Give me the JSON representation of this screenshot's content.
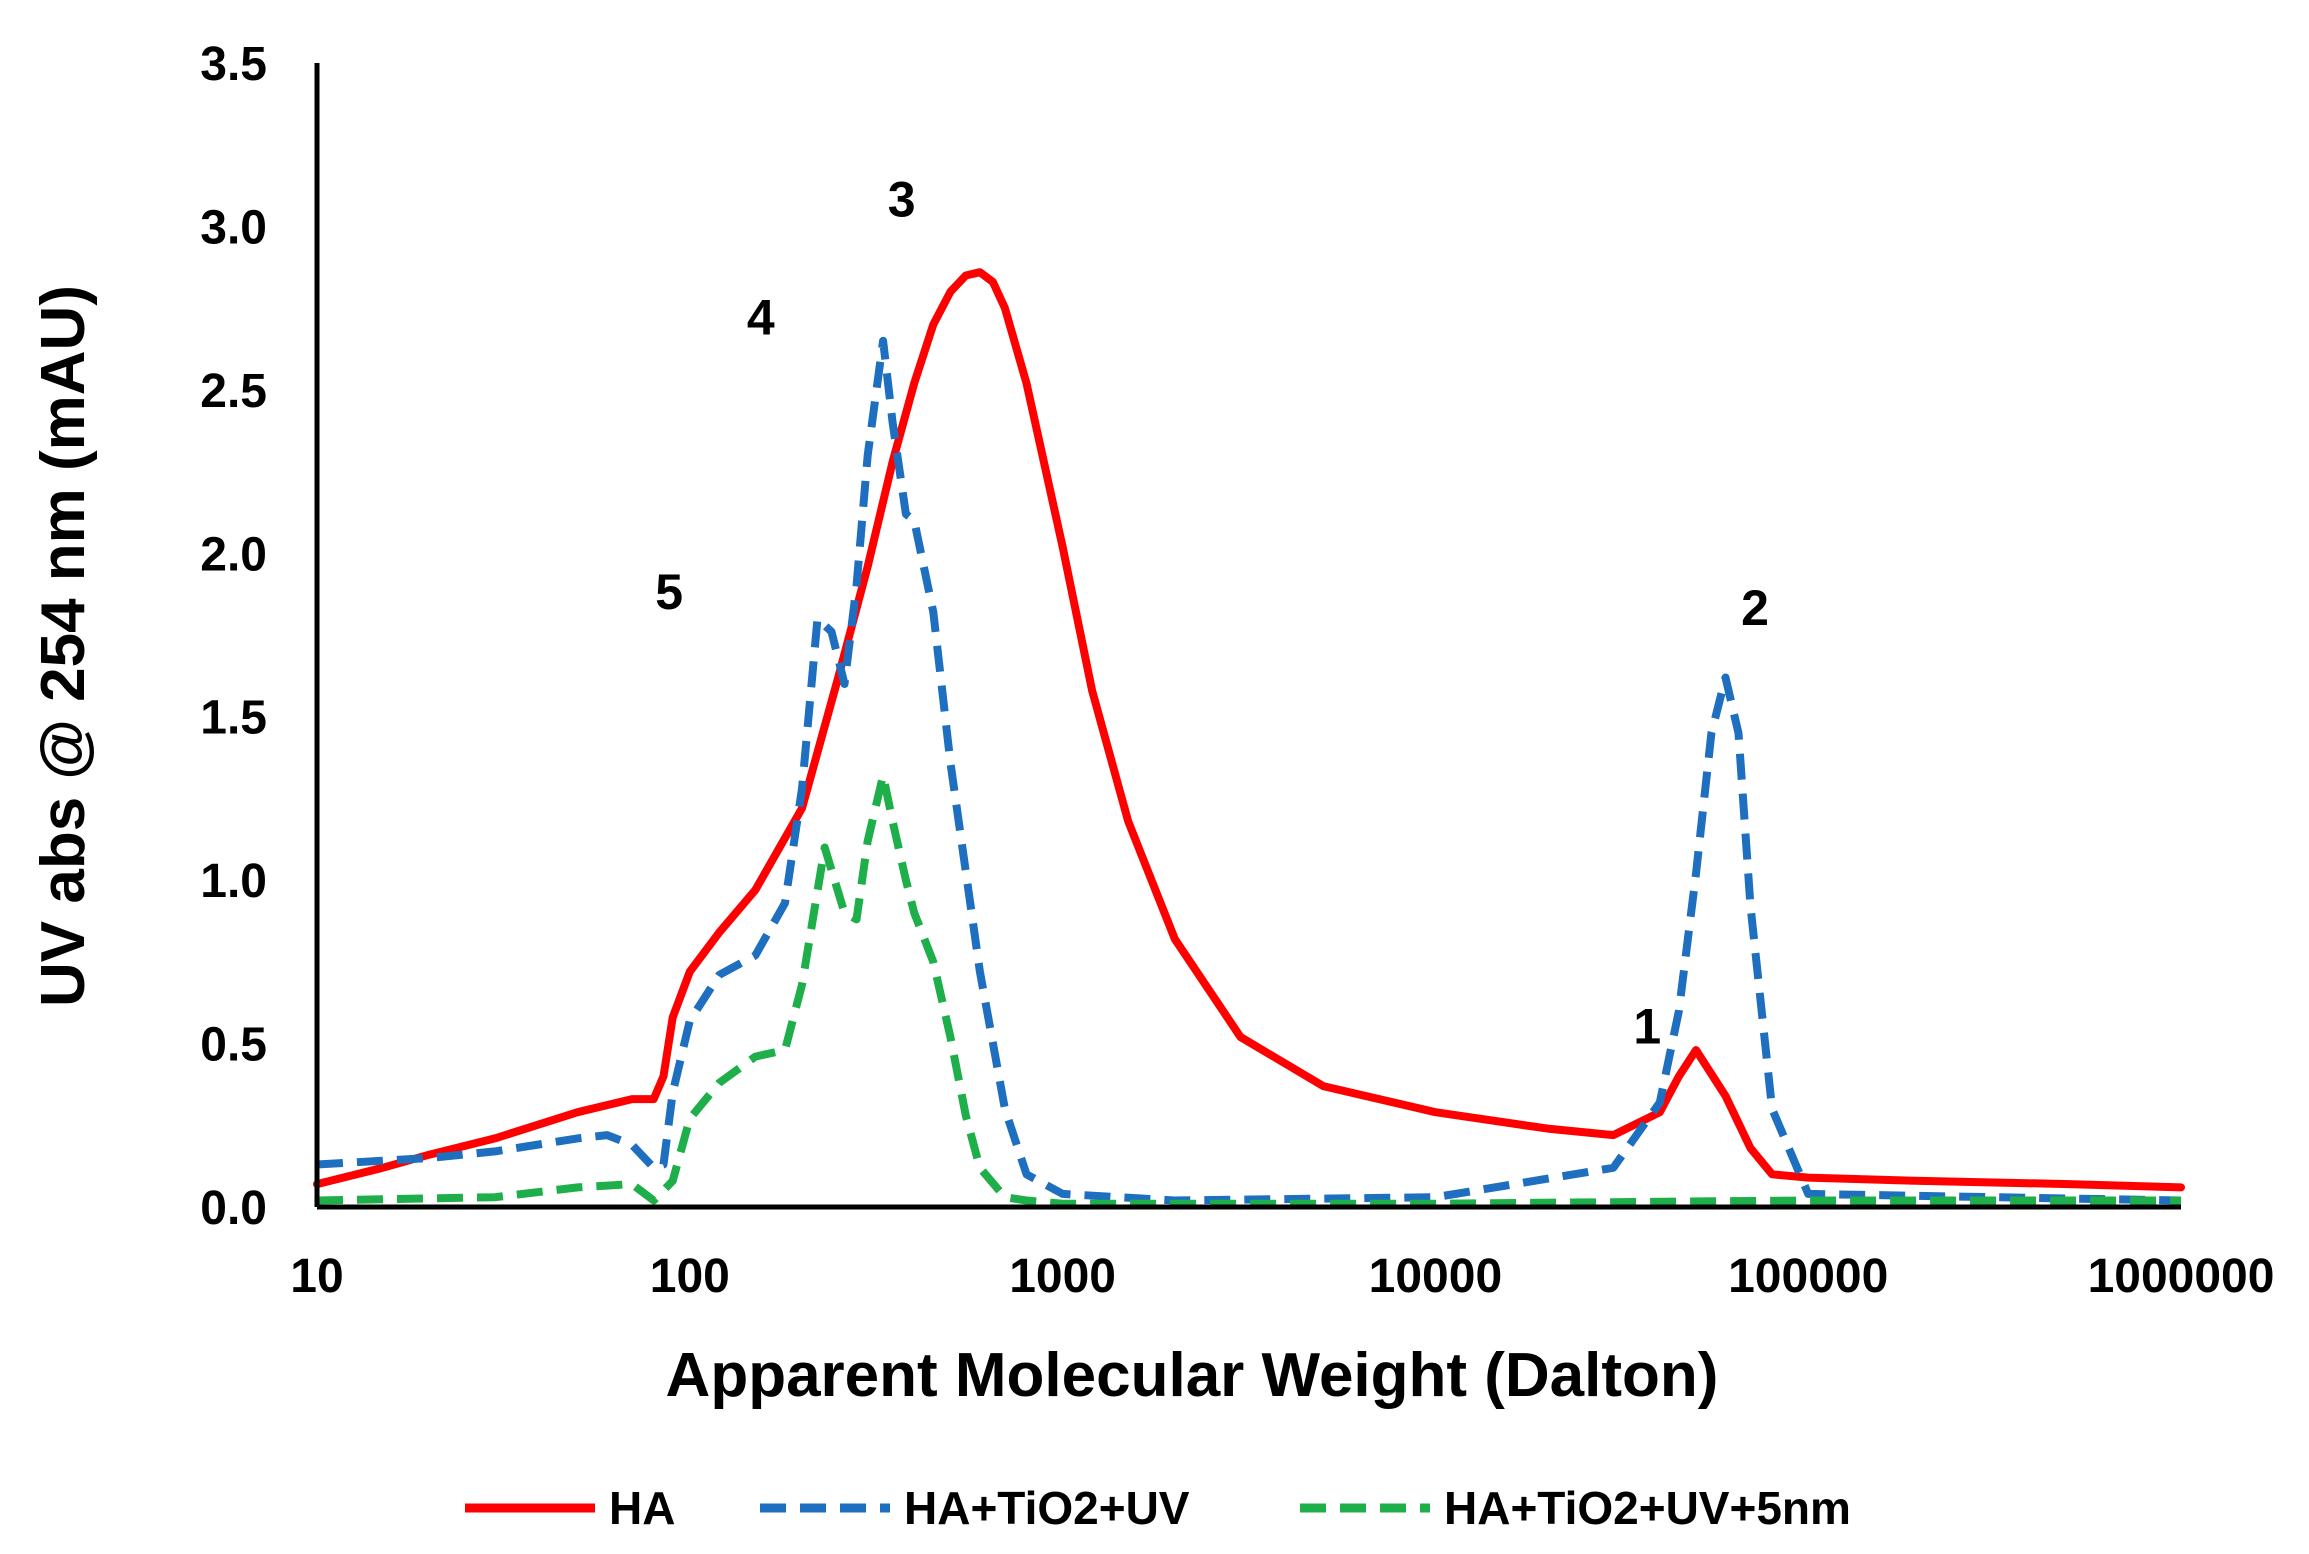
{
  "chart_data": {
    "type": "line",
    "title": "",
    "xlabel": "Apparent Molecular Weight (Dalton)",
    "ylabel": "UV abs @ 254 nm (mAU)",
    "x_scale": "log",
    "xlim": [
      10,
      1000000
    ],
    "ylim": [
      0,
      3.5
    ],
    "x_ticks": [
      10,
      100,
      1000,
      10000,
      100000,
      1000000
    ],
    "x_tick_labels": [
      "10",
      "100",
      "1000",
      "10000",
      "100000",
      "1000000"
    ],
    "y_ticks": [
      0,
      0.5,
      1.0,
      1.5,
      2.0,
      2.5,
      3.0,
      3.5
    ],
    "y_tick_labels": [
      "0.0",
      "0.5",
      "1.0",
      "1.5",
      "2.0",
      "2.5",
      "3.0",
      "3.5"
    ],
    "grid": false,
    "legend_position": "bottom-center",
    "series": [
      {
        "name": "HA",
        "color": "#ff0000",
        "dash": "solid",
        "x": [
          10,
          15,
          20,
          30,
          50,
          70,
          80,
          85,
          90,
          100,
          120,
          150,
          200,
          250,
          300,
          350,
          400,
          450,
          500,
          550,
          600,
          650,
          700,
          800,
          1000,
          1200,
          1500,
          2000,
          3000,
          5000,
          10000,
          20000,
          30000,
          40000,
          45000,
          50000,
          60000,
          70000,
          80000,
          100000,
          200000,
          500000,
          1000000
        ],
        "y": [
          0.07,
          0.12,
          0.16,
          0.21,
          0.29,
          0.33,
          0.33,
          0.4,
          0.58,
          0.72,
          0.84,
          0.97,
          1.22,
          1.62,
          1.96,
          2.28,
          2.52,
          2.7,
          2.8,
          2.85,
          2.86,
          2.83,
          2.75,
          2.52,
          2.02,
          1.58,
          1.18,
          0.82,
          0.52,
          0.37,
          0.29,
          0.24,
          0.22,
          0.29,
          0.4,
          0.48,
          0.34,
          0.18,
          0.1,
          0.09,
          0.08,
          0.07,
          0.06
        ]
      },
      {
        "name": "HA+TiO2+UV",
        "color": "#1f6fc0",
        "dash": "dashed",
        "x": [
          10,
          20,
          30,
          50,
          60,
          70,
          80,
          85,
          90,
          100,
          120,
          150,
          180,
          200,
          220,
          240,
          260,
          280,
          300,
          330,
          350,
          380,
          400,
          450,
          500,
          600,
          700,
          800,
          1000,
          2000,
          10000,
          30000,
          40000,
          45000,
          50000,
          55000,
          60000,
          65000,
          70000,
          80000,
          100000,
          1000000
        ],
        "y": [
          0.13,
          0.15,
          0.17,
          0.21,
          0.22,
          0.19,
          0.12,
          0.13,
          0.35,
          0.57,
          0.71,
          0.77,
          0.93,
          1.28,
          1.8,
          1.76,
          1.6,
          1.9,
          2.3,
          2.65,
          2.4,
          2.12,
          2.1,
          1.82,
          1.36,
          0.72,
          0.3,
          0.1,
          0.04,
          0.02,
          0.03,
          0.12,
          0.32,
          0.6,
          1.02,
          1.45,
          1.62,
          1.45,
          0.92,
          0.3,
          0.04,
          0.02
        ]
      },
      {
        "name": "HA+TiO2+UV+5nm",
        "color": "#1faf4a",
        "dash": "dashed",
        "x": [
          10,
          30,
          50,
          70,
          80,
          90,
          100,
          120,
          150,
          180,
          200,
          230,
          260,
          280,
          300,
          330,
          350,
          380,
          400,
          450,
          500,
          550,
          600,
          700,
          800,
          1000,
          10000,
          100000,
          1000000
        ],
        "y": [
          0.02,
          0.03,
          0.06,
          0.07,
          0.02,
          0.08,
          0.27,
          0.38,
          0.46,
          0.48,
          0.68,
          1.1,
          0.9,
          0.88,
          1.12,
          1.32,
          1.18,
          1.0,
          0.9,
          0.75,
          0.52,
          0.28,
          0.12,
          0.03,
          0.02,
          0.01,
          0.01,
          0.02,
          0.02
        ]
      }
    ],
    "annotations": [
      {
        "text": "1",
        "x": 37000,
        "y": 0.5
      },
      {
        "text": "2",
        "x": 72000,
        "y": 1.78
      },
      {
        "text": "3",
        "x": 370,
        "y": 3.03
      },
      {
        "text": "4",
        "x": 155,
        "y": 2.67
      },
      {
        "text": "5",
        "x": 88,
        "y": 1.83
      }
    ]
  }
}
